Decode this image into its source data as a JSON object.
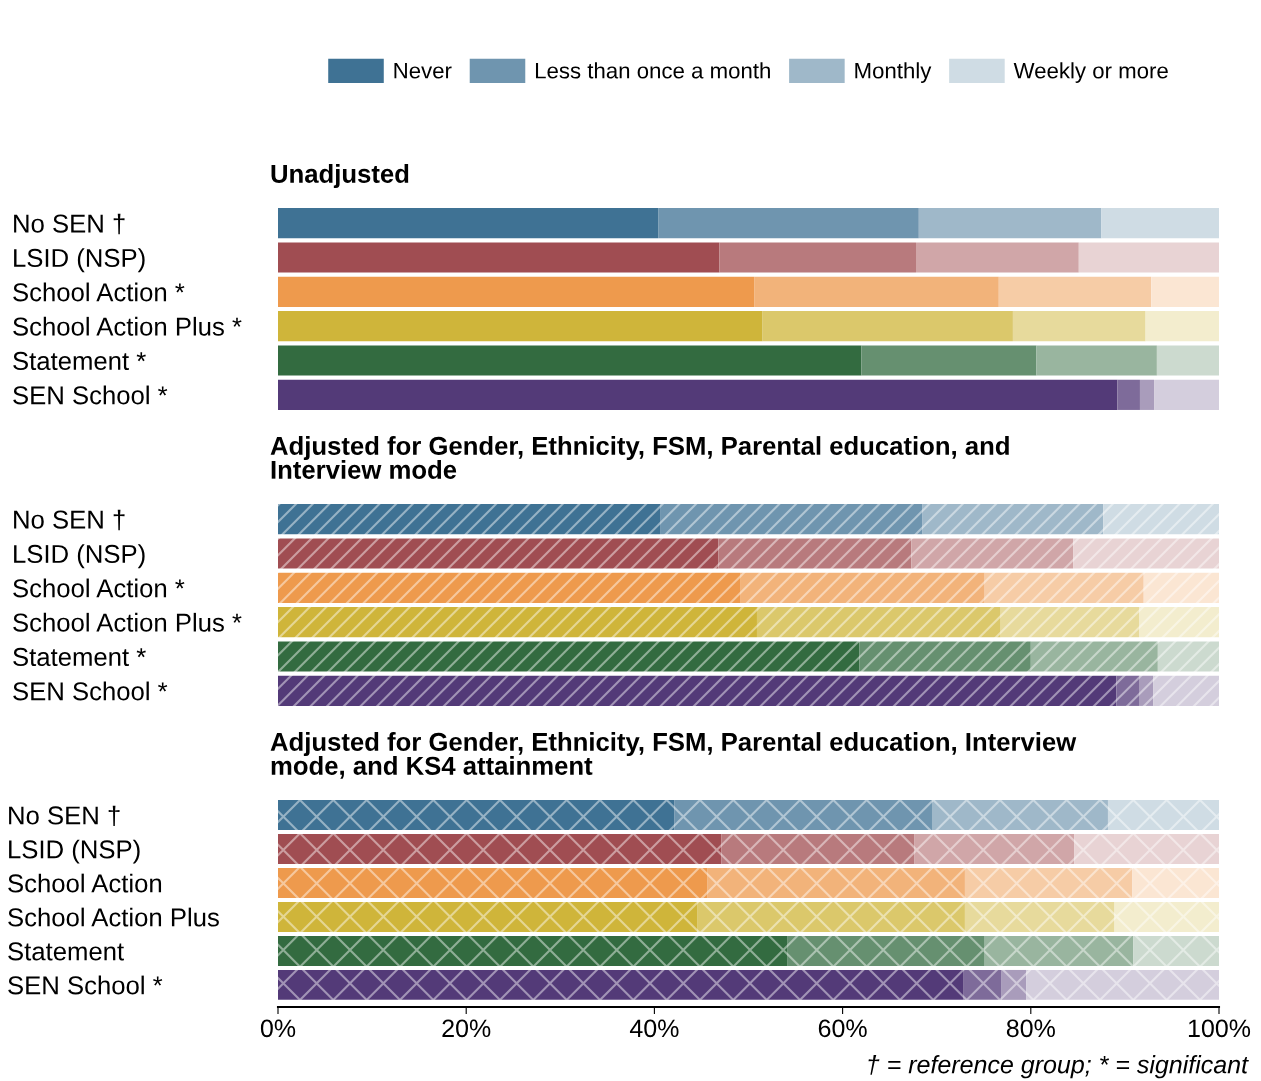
{
  "chart_data": [
    {
      "type": "bar",
      "orientation": "horizontal",
      "stacked": true,
      "title": "Unadjusted",
      "legend": "top",
      "tick_labels": "y",
      "xlim": [
        0,
        100
      ],
      "categories": [
        "No SEN †",
        "LSID (NSP)",
        "School Action *",
        "School Action Plus *",
        "Statement *",
        "SEN School *"
      ],
      "series": [
        {
          "name": "Never",
          "color": "#3f7294",
          "colors": [
            "#3f7294",
            "#a04d52",
            "#ee9a4d",
            "#cfb53a",
            "#336b40",
            "#533a78"
          ],
          "values": [
            40.4,
            46.9,
            50.6,
            51.5,
            62.0,
            89.2
          ]
        },
        {
          "name": "Less than once a month",
          "color": "#6f95af",
          "colors": [
            "#6f95af",
            "#b87a7d",
            "#f2b37a",
            "#dbc86b",
            "#669070",
            "#7e6b9a"
          ],
          "values": [
            27.7,
            20.9,
            26.0,
            26.6,
            18.6,
            2.4
          ]
        },
        {
          "name": "Monthly",
          "color": "#9fb8c9",
          "colors": [
            "#9fb8c9",
            "#d0a6a8",
            "#f6cca6",
            "#e7da9c",
            "#99b59f",
            "#a99cbb"
          ],
          "values": [
            19.4,
            17.3,
            16.2,
            14.1,
            12.8,
            1.5
          ]
        },
        {
          "name": "Weekly or more",
          "color": "#cfdce4",
          "colors": [
            "#cfdce4",
            "#e8d3d4",
            "#fbe6d3",
            "#f3edce",
            "#ccdacf",
            "#d4cedd"
          ],
          "values": [
            12.5,
            14.9,
            7.2,
            7.8,
            6.6,
            6.9
          ]
        }
      ]
    },
    {
      "type": "bar",
      "orientation": "horizontal",
      "stacked": true,
      "title": "Adjusted for Gender, Ethnicity, FSM, Parental education, and Interview mode",
      "tick_labels": "y",
      "xlim": [
        0,
        100
      ],
      "categories": [
        "No SEN †",
        "LSID (NSP)",
        "School Action *",
        "School Action Plus *",
        "Statement *",
        "SEN School *"
      ],
      "series": [
        {
          "colors": [
            "#3f7294",
            "#a04d52",
            "#ee9a4d",
            "#cfb53a",
            "#336b40",
            "#533a78"
          ],
          "values": [
            40.6,
            46.8,
            49.1,
            50.9,
            61.8,
            89.1
          ]
        },
        {
          "colors": [
            "#6f95af",
            "#b87a7d",
            "#f2b37a",
            "#dbc86b",
            "#669070",
            "#7e6b9a"
          ],
          "values": [
            27.9,
            20.5,
            26.0,
            25.9,
            18.2,
            2.4
          ]
        },
        {
          "colors": [
            "#9fb8c9",
            "#d0a6a8",
            "#f6cca6",
            "#e7da9c",
            "#99b59f",
            "#a99cbb"
          ],
          "values": [
            19.2,
            17.2,
            16.9,
            14.7,
            13.5,
            1.5
          ]
        },
        {
          "colors": [
            "#cfdce4",
            "#e8d3d4",
            "#fbe6d3",
            "#f3edce",
            "#ccdacf",
            "#d4cedd"
          ],
          "values": [
            12.3,
            15.5,
            8.0,
            8.5,
            6.5,
            7.0
          ]
        }
      ]
    },
    {
      "type": "bar",
      "orientation": "horizontal",
      "stacked": true,
      "title": "Adjusted for Gender, Ethnicity, FSM, Parental education, Interview mode, and KS4 attainment",
      "xlim": [
        0,
        100
      ],
      "xticks": [
        {
          "value": 0,
          "label": "0%"
        },
        {
          "value": 20,
          "label": "20%"
        },
        {
          "value": 40,
          "label": "40%"
        },
        {
          "value": 60,
          "label": "60%"
        },
        {
          "value": 80,
          "label": "80%"
        },
        {
          "value": 100,
          "label": "100%"
        }
      ],
      "categories": [
        "No SEN †",
        "LSID (NSP)",
        "School Action",
        "School Action Plus",
        "Statement",
        "SEN School *"
      ],
      "annotations": [
        "† = reference group; * = significant"
      ],
      "series": [
        {
          "colors": [
            "#3f7294",
            "#a04d52",
            "#ee9a4d",
            "#cfb53a",
            "#336b40",
            "#533a78"
          ],
          "values": [
            42.1,
            47.1,
            45.6,
            44.6,
            54.1,
            72.8
          ]
        },
        {
          "colors": [
            "#6f95af",
            "#b87a7d",
            "#f2b37a",
            "#dbc86b",
            "#669070",
            "#7e6b9a"
          ],
          "values": [
            27.4,
            20.5,
            27.4,
            28.4,
            21.0,
            4.1
          ]
        },
        {
          "colors": [
            "#9fb8c9",
            "#d0a6a8",
            "#f6cca6",
            "#e7da9c",
            "#99b59f",
            "#a99cbb"
          ],
          "values": [
            18.7,
            17.0,
            17.8,
            15.9,
            15.8,
            2.6
          ]
        },
        {
          "colors": [
            "#cfdce4",
            "#e8d3d4",
            "#fbe6d3",
            "#f3edce",
            "#ccdacf",
            "#d4cedd"
          ],
          "values": [
            11.8,
            15.4,
            9.2,
            11.1,
            9.1,
            20.5
          ]
        }
      ]
    }
  ]
}
